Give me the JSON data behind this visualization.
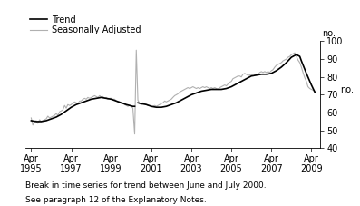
{
  "ylabel": "no.",
  "ylim": [
    40,
    100
  ],
  "yticks": [
    40,
    50,
    60,
    70,
    80,
    90,
    100
  ],
  "xtick_labels": [
    "Apr\n1995",
    "Apr\n1997",
    "Apr\n1999",
    "Apr\n2001",
    "Apr\n2003",
    "Apr\n2005",
    "Apr\n2007",
    "Apr\n2009"
  ],
  "xtick_years": [
    1995,
    1997,
    1999,
    2001,
    2003,
    2005,
    2007,
    2009
  ],
  "trend_color": "#000000",
  "seasonal_color": "#b0b0b0",
  "legend_trend": "Trend",
  "legend_seasonal": "Seasonally Adjusted",
  "footnote1": "Break in time series for trend between June and July 2000.",
  "footnote2": "See paragraph 12 of the Explanatory Notes.",
  "trend_linewidth": 1.2,
  "seasonal_linewidth": 0.8,
  "background_color": "#ffffff",
  "xlim": [
    1994.95,
    2009.7
  ],
  "trend_data": [
    [
      1995.25,
      55.5
    ],
    [
      1995.5,
      55.0
    ],
    [
      1995.75,
      55.0
    ],
    [
      1996.0,
      55.5
    ],
    [
      1996.25,
      56.5
    ],
    [
      1996.5,
      57.5
    ],
    [
      1996.75,
      59.0
    ],
    [
      1997.0,
      61.0
    ],
    [
      1997.25,
      63.0
    ],
    [
      1997.5,
      64.5
    ],
    [
      1997.75,
      65.5
    ],
    [
      1998.0,
      66.5
    ],
    [
      1998.25,
      67.5
    ],
    [
      1998.5,
      68.0
    ],
    [
      1998.75,
      68.5
    ],
    [
      1999.0,
      68.0
    ],
    [
      1999.25,
      67.5
    ],
    [
      1999.5,
      66.5
    ],
    [
      1999.75,
      65.5
    ],
    [
      2000.0,
      64.5
    ],
    [
      2000.17,
      64.0
    ],
    [
      2000.33,
      63.5
    ],
    [
      2000.42,
      63.5
    ],
    [
      2000.58,
      65.5
    ],
    [
      2000.75,
      65.0
    ],
    [
      2001.0,
      64.5
    ],
    [
      2001.25,
      63.5
    ],
    [
      2001.5,
      63.0
    ],
    [
      2001.75,
      63.0
    ],
    [
      2002.0,
      63.5
    ],
    [
      2002.25,
      64.5
    ],
    [
      2002.5,
      65.5
    ],
    [
      2002.75,
      67.0
    ],
    [
      2003.0,
      68.5
    ],
    [
      2003.25,
      70.0
    ],
    [
      2003.5,
      71.0
    ],
    [
      2003.75,
      72.0
    ],
    [
      2004.0,
      72.5
    ],
    [
      2004.25,
      73.0
    ],
    [
      2004.5,
      73.0
    ],
    [
      2004.75,
      73.0
    ],
    [
      2005.0,
      73.5
    ],
    [
      2005.25,
      74.5
    ],
    [
      2005.5,
      76.0
    ],
    [
      2005.75,
      77.5
    ],
    [
      2006.0,
      79.0
    ],
    [
      2006.25,
      80.5
    ],
    [
      2006.5,
      81.0
    ],
    [
      2006.75,
      81.5
    ],
    [
      2007.0,
      81.5
    ],
    [
      2007.25,
      82.0
    ],
    [
      2007.5,
      83.5
    ],
    [
      2007.75,
      85.5
    ],
    [
      2008.0,
      88.0
    ],
    [
      2008.25,
      91.0
    ],
    [
      2008.5,
      92.5
    ],
    [
      2008.67,
      91.5
    ],
    [
      2008.75,
      89.0
    ],
    [
      2009.0,
      82.0
    ],
    [
      2009.25,
      75.5
    ],
    [
      2009.42,
      71.5
    ]
  ],
  "seasonal_data": [
    [
      1995.25,
      57.0
    ],
    [
      1995.33,
      53.0
    ],
    [
      1995.42,
      55.0
    ],
    [
      1995.5,
      55.5
    ],
    [
      1995.58,
      54.0
    ],
    [
      1995.67,
      56.0
    ],
    [
      1995.75,
      55.0
    ],
    [
      1995.83,
      55.5
    ],
    [
      1995.92,
      56.0
    ],
    [
      1996.0,
      56.5
    ],
    [
      1996.08,
      58.0
    ],
    [
      1996.17,
      57.0
    ],
    [
      1996.25,
      57.5
    ],
    [
      1996.33,
      58.0
    ],
    [
      1996.42,
      58.5
    ],
    [
      1996.5,
      59.5
    ],
    [
      1996.58,
      58.5
    ],
    [
      1996.67,
      60.5
    ],
    [
      1996.75,
      61.0
    ],
    [
      1996.83,
      61.5
    ],
    [
      1996.92,
      64.0
    ],
    [
      1997.0,
      62.5
    ],
    [
      1997.08,
      64.5
    ],
    [
      1997.17,
      64.0
    ],
    [
      1997.25,
      64.5
    ],
    [
      1997.33,
      65.5
    ],
    [
      1997.42,
      66.0
    ],
    [
      1997.5,
      65.5
    ],
    [
      1997.58,
      65.0
    ],
    [
      1997.67,
      66.5
    ],
    [
      1997.75,
      66.5
    ],
    [
      1997.83,
      67.5
    ],
    [
      1997.92,
      68.0
    ],
    [
      1998.0,
      67.5
    ],
    [
      1998.08,
      68.5
    ],
    [
      1998.17,
      68.0
    ],
    [
      1998.25,
      68.5
    ],
    [
      1998.33,
      69.0
    ],
    [
      1998.42,
      69.5
    ],
    [
      1998.5,
      69.0
    ],
    [
      1998.58,
      68.5
    ],
    [
      1998.67,
      69.5
    ],
    [
      1998.75,
      68.5
    ],
    [
      1998.83,
      69.0
    ],
    [
      1998.92,
      68.0
    ],
    [
      1999.0,
      68.5
    ],
    [
      1999.08,
      67.5
    ],
    [
      1999.17,
      68.0
    ],
    [
      1999.25,
      68.0
    ],
    [
      1999.33,
      67.5
    ],
    [
      1999.42,
      67.5
    ],
    [
      1999.5,
      66.5
    ],
    [
      1999.58,
      66.0
    ],
    [
      1999.67,
      66.0
    ],
    [
      1999.75,
      65.0
    ],
    [
      1999.83,
      65.5
    ],
    [
      1999.92,
      64.5
    ],
    [
      2000.0,
      64.0
    ],
    [
      2000.08,
      63.5
    ],
    [
      2000.17,
      64.0
    ],
    [
      2000.25,
      63.5
    ],
    [
      2000.33,
      62.5
    ],
    [
      2000.42,
      48.0
    ],
    [
      2000.5,
      95.0
    ],
    [
      2000.58,
      67.0
    ],
    [
      2000.67,
      65.0
    ],
    [
      2000.75,
      64.5
    ],
    [
      2000.83,
      65.5
    ],
    [
      2000.92,
      65.0
    ],
    [
      2001.0,
      64.5
    ],
    [
      2001.08,
      64.0
    ],
    [
      2001.17,
      64.0
    ],
    [
      2001.25,
      63.5
    ],
    [
      2001.33,
      63.5
    ],
    [
      2001.42,
      64.0
    ],
    [
      2001.5,
      63.5
    ],
    [
      2001.58,
      64.0
    ],
    [
      2001.67,
      64.5
    ],
    [
      2001.75,
      65.0
    ],
    [
      2001.83,
      65.5
    ],
    [
      2001.92,
      66.5
    ],
    [
      2002.0,
      66.0
    ],
    [
      2002.08,
      66.5
    ],
    [
      2002.17,
      67.0
    ],
    [
      2002.25,
      67.5
    ],
    [
      2002.33,
      68.5
    ],
    [
      2002.42,
      69.5
    ],
    [
      2002.5,
      70.0
    ],
    [
      2002.58,
      70.5
    ],
    [
      2002.67,
      71.5
    ],
    [
      2002.75,
      72.0
    ],
    [
      2002.83,
      72.5
    ],
    [
      2002.92,
      73.0
    ],
    [
      2003.0,
      73.5
    ],
    [
      2003.08,
      74.0
    ],
    [
      2003.17,
      73.5
    ],
    [
      2003.25,
      74.0
    ],
    [
      2003.33,
      74.5
    ],
    [
      2003.42,
      74.0
    ],
    [
      2003.5,
      73.5
    ],
    [
      2003.58,
      74.0
    ],
    [
      2003.67,
      73.5
    ],
    [
      2003.75,
      74.0
    ],
    [
      2003.83,
      74.5
    ],
    [
      2003.92,
      74.0
    ],
    [
      2004.0,
      74.5
    ],
    [
      2004.08,
      74.0
    ],
    [
      2004.17,
      73.5
    ],
    [
      2004.25,
      74.0
    ],
    [
      2004.33,
      73.5
    ],
    [
      2004.42,
      74.0
    ],
    [
      2004.5,
      73.5
    ],
    [
      2004.58,
      73.0
    ],
    [
      2004.67,
      74.0
    ],
    [
      2004.75,
      74.5
    ],
    [
      2004.83,
      75.0
    ],
    [
      2004.92,
      75.5
    ],
    [
      2005.0,
      75.0
    ],
    [
      2005.08,
      76.0
    ],
    [
      2005.17,
      77.0
    ],
    [
      2005.25,
      77.5
    ],
    [
      2005.33,
      79.0
    ],
    [
      2005.42,
      79.5
    ],
    [
      2005.5,
      80.0
    ],
    [
      2005.58,
      80.5
    ],
    [
      2005.67,
      80.5
    ],
    [
      2005.75,
      80.0
    ],
    [
      2005.83,
      81.5
    ],
    [
      2005.92,
      82.0
    ],
    [
      2006.0,
      81.5
    ],
    [
      2006.08,
      81.0
    ],
    [
      2006.17,
      81.0
    ],
    [
      2006.25,
      81.5
    ],
    [
      2006.33,
      80.5
    ],
    [
      2006.42,
      81.0
    ],
    [
      2006.5,
      81.0
    ],
    [
      2006.58,
      81.5
    ],
    [
      2006.67,
      82.5
    ],
    [
      2006.75,
      83.0
    ],
    [
      2006.83,
      82.5
    ],
    [
      2006.92,
      83.0
    ],
    [
      2007.0,
      82.5
    ],
    [
      2007.08,
      83.0
    ],
    [
      2007.17,
      82.5
    ],
    [
      2007.25,
      83.5
    ],
    [
      2007.33,
      84.0
    ],
    [
      2007.42,
      85.5
    ],
    [
      2007.5,
      86.5
    ],
    [
      2007.58,
      87.0
    ],
    [
      2007.67,
      87.5
    ],
    [
      2007.75,
      88.0
    ],
    [
      2007.83,
      89.0
    ],
    [
      2007.92,
      89.5
    ],
    [
      2008.0,
      90.0
    ],
    [
      2008.08,
      91.0
    ],
    [
      2008.17,
      91.5
    ],
    [
      2008.25,
      92.5
    ],
    [
      2008.33,
      93.0
    ],
    [
      2008.42,
      93.5
    ],
    [
      2008.5,
      91.5
    ],
    [
      2008.58,
      89.5
    ],
    [
      2008.67,
      88.0
    ],
    [
      2008.75,
      85.5
    ],
    [
      2008.83,
      82.5
    ],
    [
      2008.92,
      79.5
    ],
    [
      2009.0,
      77.5
    ],
    [
      2009.08,
      74.5
    ],
    [
      2009.17,
      73.5
    ],
    [
      2009.25,
      73.0
    ],
    [
      2009.33,
      72.5
    ],
    [
      2009.42,
      72.0
    ]
  ]
}
